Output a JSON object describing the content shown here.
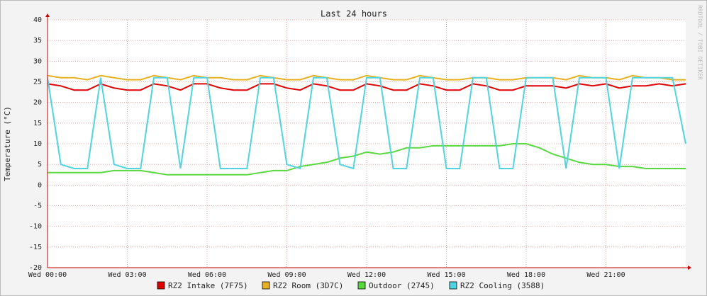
{
  "chart_data": {
    "type": "line",
    "title": "Last 24 hours",
    "y_label": "Temperature (°C)",
    "watermark": "RRDTOOL / TOBI OETIKER",
    "x": [
      0,
      0.5,
      1,
      1.5,
      2,
      2.5,
      3,
      3.5,
      4,
      4.5,
      5,
      5.5,
      6,
      6.5,
      7,
      7.5,
      8,
      8.5,
      9,
      9.5,
      10,
      10.5,
      11,
      11.5,
      12,
      12.5,
      13,
      13.5,
      14,
      14.5,
      15,
      15.5,
      16,
      16.5,
      17,
      17.5,
      18,
      18.5,
      19,
      19.5,
      20,
      20.5,
      21,
      21.5,
      22,
      22.5,
      23,
      23.5,
      24
    ],
    "xlim": [
      0,
      24
    ],
    "xticks": [
      {
        "value": 0,
        "label": "Wed 00:00"
      },
      {
        "value": 3,
        "label": "Wed 03:00"
      },
      {
        "value": 6,
        "label": "Wed 06:00"
      },
      {
        "value": 9,
        "label": "Wed 09:00"
      },
      {
        "value": 12,
        "label": "Wed 12:00"
      },
      {
        "value": 15,
        "label": "Wed 15:00"
      },
      {
        "value": 18,
        "label": "Wed 18:00"
      },
      {
        "value": 21,
        "label": "Wed 21:00"
      }
    ],
    "ylim": [
      -20,
      40
    ],
    "yticks": [
      -20,
      -15,
      -10,
      -5,
      0,
      5,
      10,
      15,
      20,
      25,
      30,
      35,
      40
    ],
    "grid": true,
    "series": [
      {
        "name": "RZ2 Intake (7F75)",
        "color": "#e00000",
        "values": [
          24.5,
          24,
          23,
          23,
          24.5,
          23.5,
          23,
          23,
          24.5,
          24,
          23,
          24.5,
          24.5,
          23.5,
          23,
          23,
          24.5,
          24.5,
          23.5,
          23,
          24.5,
          24,
          23,
          23,
          24.5,
          24,
          23,
          23,
          24.5,
          24,
          23,
          23,
          24.5,
          24,
          23,
          23,
          24,
          24,
          24,
          23.5,
          24.5,
          24,
          24.5,
          23.5,
          24,
          24,
          24.5,
          24,
          24.5
        ]
      },
      {
        "name": "RZ2 Room (3D7C)",
        "color": "#e6b020",
        "values": [
          26.5,
          26,
          26,
          25.5,
          26.5,
          26,
          25.5,
          25.5,
          26.5,
          26,
          25.5,
          26.5,
          26,
          26,
          25.5,
          25.5,
          26.5,
          26,
          25.5,
          25.5,
          26.5,
          26,
          25.5,
          25.5,
          26.5,
          26,
          25.5,
          25.5,
          26.5,
          26,
          25.5,
          25.5,
          26,
          26,
          25.5,
          25.5,
          26,
          26,
          26,
          25.5,
          26.5,
          26,
          26,
          25.5,
          26.5,
          26,
          26,
          25.5,
          25.5
        ]
      },
      {
        "name": "Outdoor (2745)",
        "color": "#5ad840",
        "values": [
          3,
          3,
          3,
          3,
          3,
          3.5,
          3.5,
          3.5,
          3,
          2.5,
          2.5,
          2.5,
          2.5,
          2.5,
          2.5,
          2.5,
          3,
          3.5,
          3.5,
          4.5,
          5,
          5.5,
          6.5,
          7,
          8,
          7.5,
          8,
          9,
          9,
          9.5,
          9.5,
          9.5,
          9.5,
          9.5,
          9.5,
          10,
          10,
          9,
          7.5,
          6.5,
          5.5,
          5,
          5,
          4.5,
          4.5,
          4,
          4,
          4,
          4
        ]
      },
      {
        "name": "RZ2 Cooling (3588)",
        "color": "#50d4e0",
        "values": [
          26,
          5,
          4,
          4,
          26,
          5,
          4,
          4,
          26,
          26,
          4,
          26,
          26,
          4,
          4,
          4,
          26,
          26,
          5,
          4,
          26,
          26,
          5,
          4,
          26,
          26,
          4,
          4,
          26,
          26,
          4,
          4,
          26,
          26,
          4,
          4,
          26,
          26,
          26,
          4,
          26,
          26,
          26,
          4,
          26,
          26,
          26,
          26,
          10
        ]
      }
    ]
  }
}
